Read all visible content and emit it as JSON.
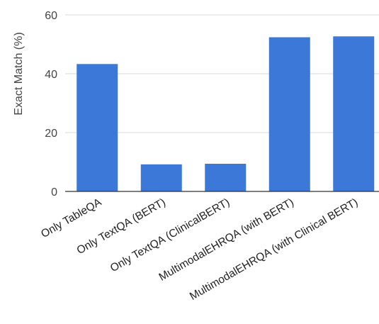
{
  "chart_data": {
    "type": "bar",
    "categories": [
      "Only TableQA",
      "Only TextQA (BERT)",
      "Only TextQA (ClinicalBERT)",
      "MultimodalEHRQA (with BERT)",
      "MultimodalEHRQA (with Clinical BERT)"
    ],
    "values": [
      43.3,
      9.2,
      9.4,
      52.4,
      52.7
    ],
    "title": "",
    "xlabel": "",
    "ylabel": "Exact Match (%)",
    "ylim": [
      0,
      60
    ],
    "yticks": [
      0,
      20,
      40,
      60
    ],
    "grid": true,
    "legend": "none",
    "bar_color": "#3c78d8",
    "grid_color": "#d9d9d9",
    "axis_color": "#333333"
  }
}
